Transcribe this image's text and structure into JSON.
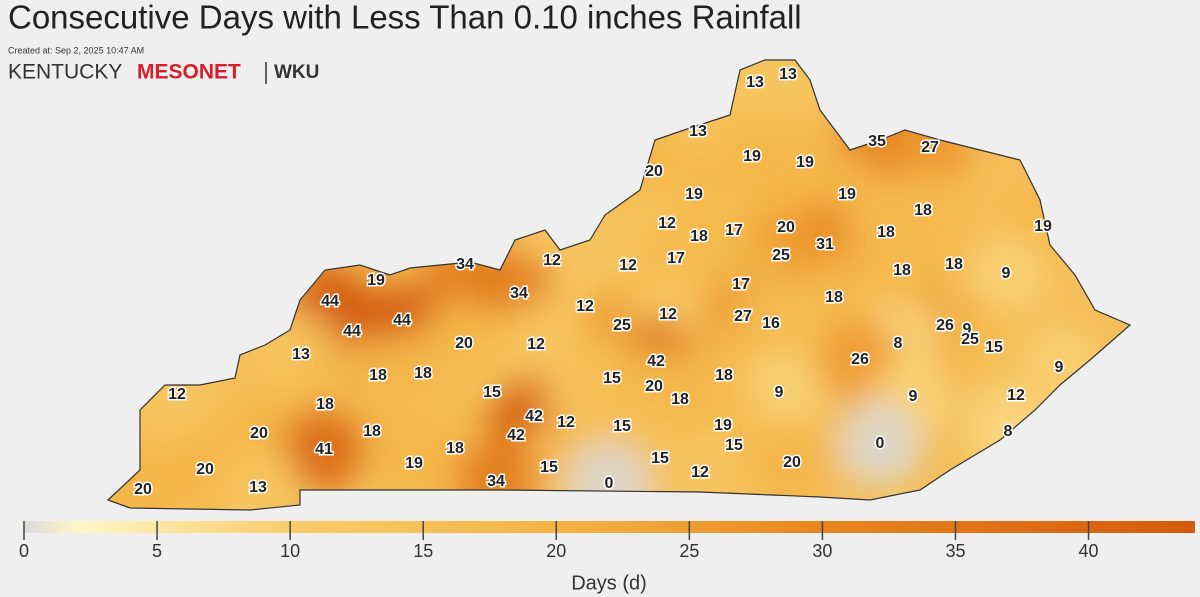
{
  "header": {
    "title": "Consecutive Days with Less Than 0.10 inches Rainfall",
    "created": "Created at: Sep 2, 2025 10:47 AM",
    "logo": {
      "left": "KENTUCKY",
      "mid": "MESONET",
      "right": "WKU"
    }
  },
  "stations": {
    "values": [
      13,
      13,
      13,
      35,
      27,
      19,
      19,
      20,
      19,
      19,
      18,
      12,
      18,
      17,
      20,
      31,
      18,
      19,
      12,
      12,
      17,
      25,
      18,
      18,
      9,
      34,
      19,
      44,
      34,
      12,
      17,
      18,
      44,
      44,
      25,
      12,
      27,
      16,
      26,
      9,
      25,
      15,
      13,
      20,
      12,
      8,
      42,
      26,
      9,
      18,
      18,
      15,
      18,
      20,
      18,
      9,
      12,
      18,
      15,
      9,
      12,
      42,
      12,
      15,
      19,
      42,
      18,
      20,
      15,
      0,
      8,
      41,
      18,
      19,
      20,
      15,
      15,
      12,
      20,
      0,
      34,
      13,
      20
    ]
  },
  "colorbar": {
    "lim": [
      0,
      44
    ],
    "ticks": [
      0,
      5,
      10,
      15,
      20,
      25,
      30,
      35,
      40
    ],
    "label": "Days (d)",
    "stops": [
      {
        "value": 0,
        "color": "#d9d9d9"
      },
      {
        "value": 2,
        "color": "#fff6c8"
      },
      {
        "value": 10,
        "color": "#f8cc6a"
      },
      {
        "value": 20,
        "color": "#f4b444"
      },
      {
        "value": 30,
        "color": "#e8861e"
      },
      {
        "value": 44,
        "color": "#d45a0c"
      }
    ]
  }
}
